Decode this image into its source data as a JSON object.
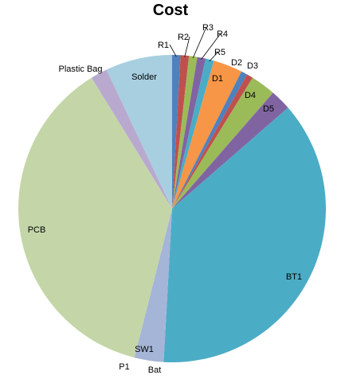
{
  "chart_data": {
    "type": "pie",
    "title": "Cost",
    "start_angle_deg": 0,
    "direction": "clockwise",
    "legend": "none",
    "slices": [
      {
        "label": "R1",
        "value": 0.02,
        "color": "#4f81bd"
      },
      {
        "label": "R2",
        "value": 0.02,
        "color": "#c0504d"
      },
      {
        "label": "R3",
        "value": 0.02,
        "color": "#9bbb59"
      },
      {
        "label": "R4",
        "value": 0.02,
        "color": "#8064a2"
      },
      {
        "label": "R5",
        "value": 0.02,
        "color": "#4bacc6"
      },
      {
        "label": "D1",
        "value": 0.07,
        "color": "#f79646"
      },
      {
        "label": "D2",
        "value": 0.015,
        "color": "#4f81bd"
      },
      {
        "label": "D3",
        "value": 0.015,
        "color": "#c0504d"
      },
      {
        "label": "D4",
        "value": 0.06,
        "color": "#9bbb59"
      },
      {
        "label": "D5",
        "value": 0.05,
        "color": "#8064a2"
      },
      {
        "label": "BT1",
        "value": 0.85,
        "color": "#4bacc6"
      },
      {
        "label": "Bat",
        "value": 0.07,
        "color": "#a5b5d7"
      },
      {
        "label": "P1",
        "value": 0.0,
        "color": "#d99694"
      },
      {
        "label": "SW1",
        "value": 0.0,
        "color": "#c3d69b"
      },
      {
        "label": "PCB",
        "value": 0.85,
        "color": "#c4d6a8"
      },
      {
        "label": "Plastic Bag",
        "value": 0.04,
        "color": "#b9a9cf"
      },
      {
        "label": "Solder",
        "value": 0.16,
        "color": "#a7cfe0"
      }
    ]
  }
}
